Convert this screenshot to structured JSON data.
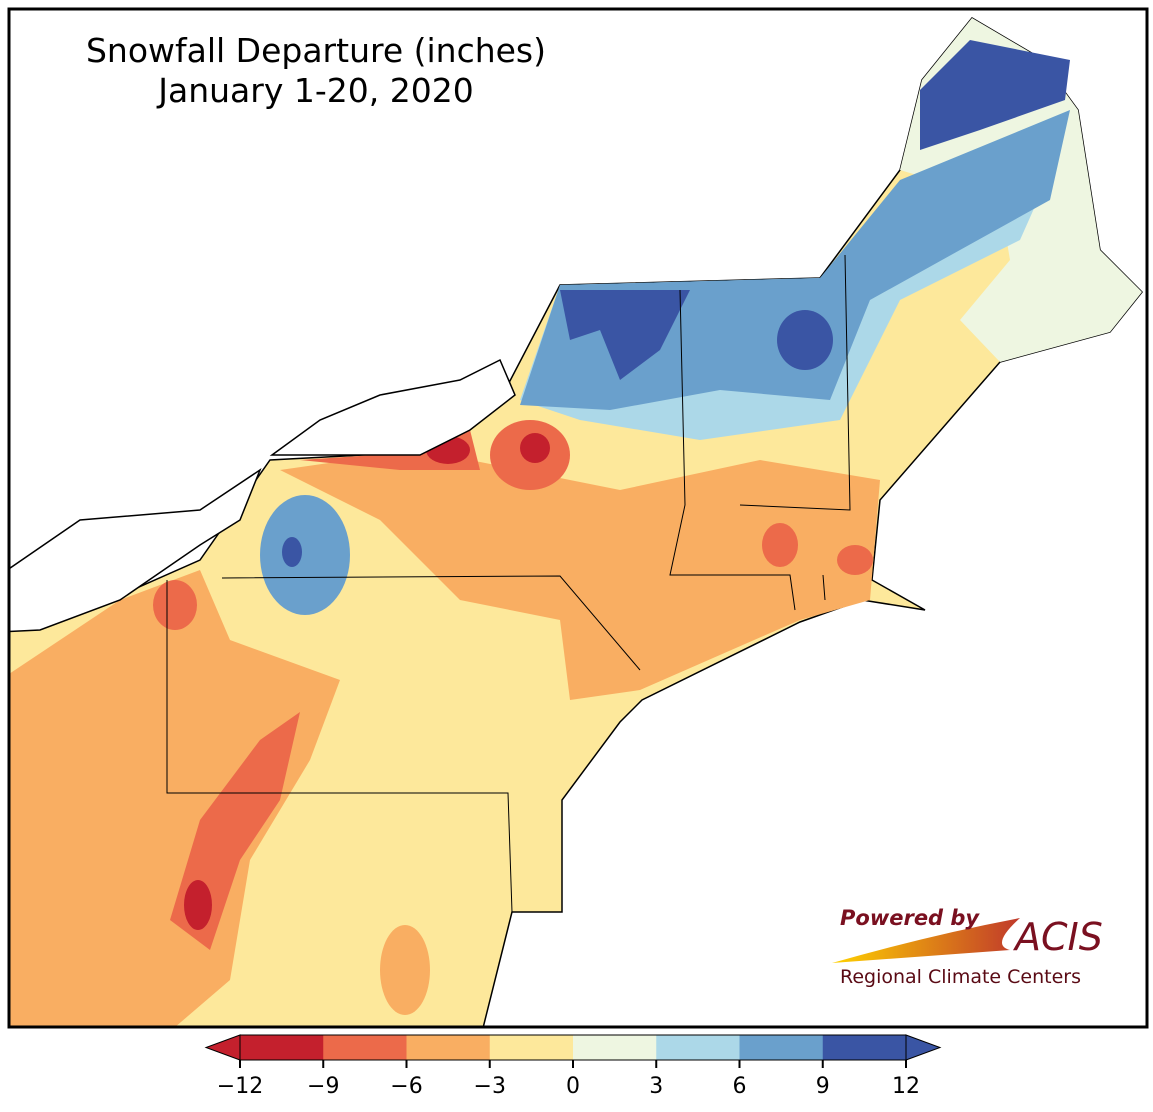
{
  "title": "Snowfall Departure (inches)",
  "subtitle": "January 1-20, 2020",
  "legend": {
    "ticks": [
      {
        "value": -12,
        "label": "−12"
      },
      {
        "value": -9,
        "label": "−9"
      },
      {
        "value": -6,
        "label": "−6"
      },
      {
        "value": -3,
        "label": "−3"
      },
      0,
      3,
      6,
      9,
      12
    ],
    "colors": [
      "#c4202d",
      "#ec6a4a",
      "#f9ae62",
      "#fde89b",
      "#eef6e1",
      "#acd8e8",
      "#6aa0cc",
      "#3a55a4"
    ]
  },
  "logo": {
    "tagline": "Powered by",
    "name": "ACIS",
    "organization": "Regional Climate Centers"
  }
}
